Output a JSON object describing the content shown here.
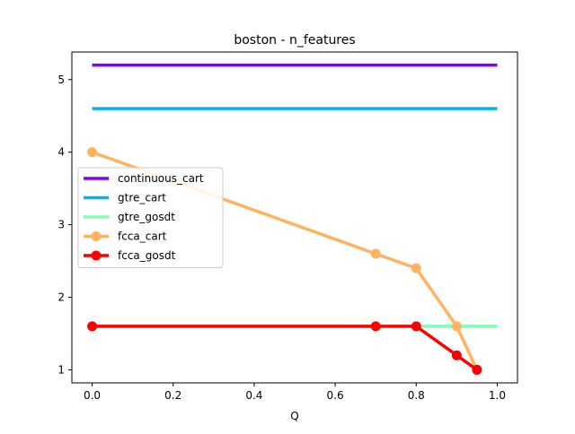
{
  "chart_data": {
    "type": "line",
    "title": "boston - n_features",
    "xlabel": "Q",
    "ylabel": "",
    "xlim": [
      -0.05,
      1.05
    ],
    "ylim": [
      0.82,
      5.38
    ],
    "xticks": [
      0.0,
      0.2,
      0.4,
      0.6,
      0.8,
      1.0
    ],
    "xtick_labels": [
      "0.0",
      "0.2",
      "0.4",
      "0.6",
      "0.8",
      "1.0"
    ],
    "yticks": [
      1,
      2,
      3,
      4,
      5
    ],
    "ytick_labels": [
      "1",
      "2",
      "3",
      "4",
      "5"
    ],
    "grid": false,
    "legend_position": "center-left",
    "series": [
      {
        "name": "continuous_cart",
        "color": "#8000ff",
        "markers": false,
        "x": [
          0.0,
          1.0
        ],
        "y": [
          5.2,
          5.2
        ]
      },
      {
        "name": "gtre_cart",
        "color": "#00b5eb",
        "markers": false,
        "x": [
          0.0,
          1.0
        ],
        "y": [
          4.6,
          4.6
        ]
      },
      {
        "name": "gtre_gosdt",
        "color": "#80ffb4",
        "markers": false,
        "x": [
          0.0,
          1.0
        ],
        "y": [
          1.6,
          1.6
        ]
      },
      {
        "name": "fcca_cart",
        "color": "#ffb360",
        "markers": true,
        "x": [
          0.0,
          0.7,
          0.8,
          0.9,
          0.95
        ],
        "y": [
          4.0,
          2.6,
          2.4,
          1.6,
          1.0
        ]
      },
      {
        "name": "fcca_gosdt",
        "color": "#ff0000",
        "markers": true,
        "x": [
          0.0,
          0.7,
          0.8,
          0.9,
          0.95
        ],
        "y": [
          1.6,
          1.6,
          1.6,
          1.2,
          1.0
        ]
      }
    ]
  }
}
